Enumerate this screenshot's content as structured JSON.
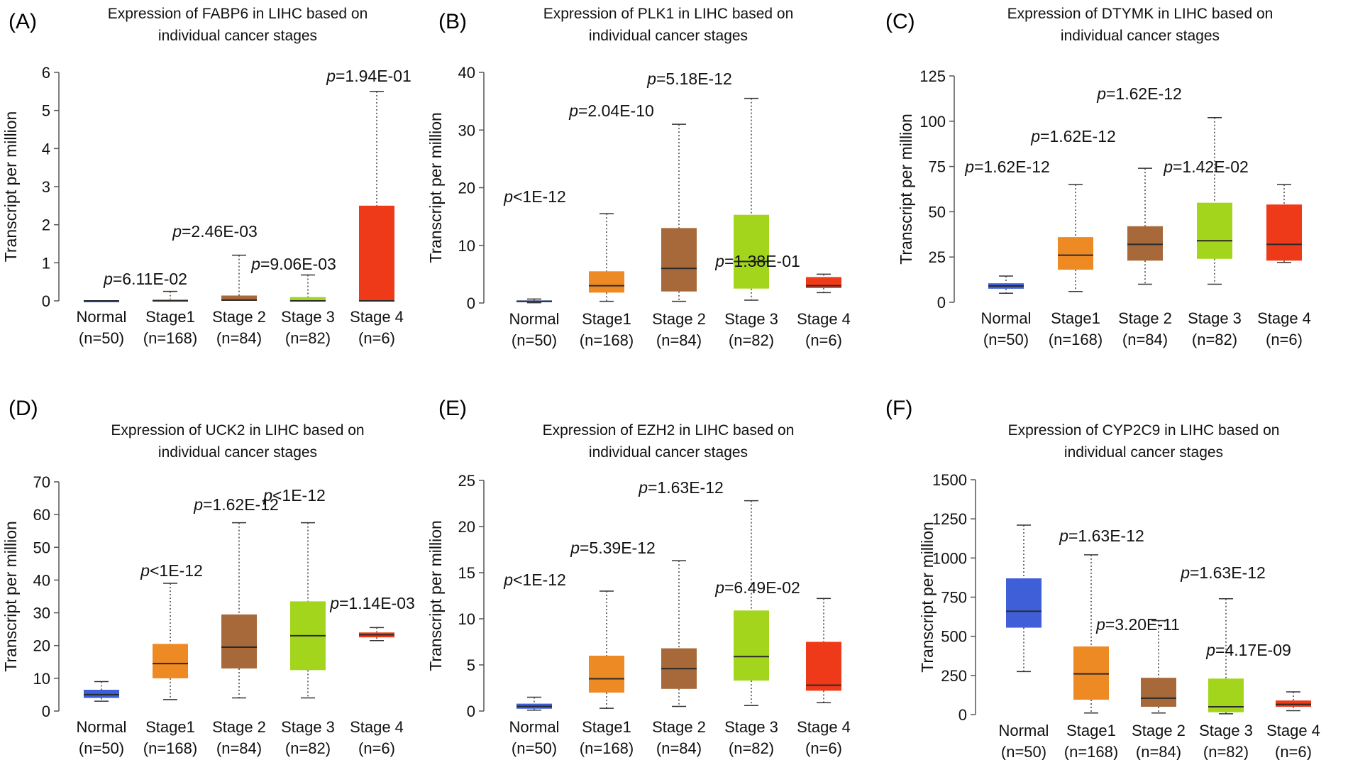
{
  "colors": {
    "Normal": "#3f5fd8",
    "Stage1": "#ee8a24",
    "Stage 2": "#a8693a",
    "Stage 3": "#a3d51d",
    "Stage 4": "#ef3a1a"
  },
  "chart_data": [
    {
      "panel": "(A)",
      "type": "boxplot",
      "title": [
        "Expression of FABP6 in LIHC based on",
        "individual cancer stages"
      ],
      "ylabel": "Transcript per million",
      "ylim": [
        0,
        6
      ],
      "yticks": [
        0,
        1,
        2,
        3,
        4,
        5,
        6
      ],
      "groups": [
        {
          "name": "Normal",
          "n": "(n=50)",
          "min": 0,
          "q1": 0,
          "median": 0,
          "q3": 0,
          "max": 0,
          "p_prefix": "",
          "p_value": ""
        },
        {
          "name": "Stage1",
          "n": "(n=168)",
          "min": 0,
          "q1": 0,
          "median": 0,
          "q3": 0.04,
          "max": 0.25,
          "p_prefix": "p",
          "p_value": "=6.11E-02"
        },
        {
          "name": "Stage 2",
          "n": "(n=84)",
          "min": 0,
          "q1": 0,
          "median": 0.02,
          "q3": 0.14,
          "max": 1.2,
          "p_prefix": "p",
          "p_value": "=2.46E-03"
        },
        {
          "name": "Stage 3",
          "n": "(n=82)",
          "min": 0,
          "q1": 0,
          "median": 0,
          "q3": 0.1,
          "max": 0.68,
          "p_prefix": "p",
          "p_value": "=9.06E-03"
        },
        {
          "name": "Stage 4",
          "n": "(n=6)",
          "min": 0,
          "q1": 0,
          "median": 0,
          "q3": 2.5,
          "max": 5.5,
          "p_prefix": "p",
          "p_value": "=1.94E-01"
        }
      ]
    },
    {
      "panel": "(B)",
      "type": "boxplot",
      "title": [
        "Expression of PLK1 in LIHC based on",
        "individual cancer stages"
      ],
      "ylabel": "Transcript per million",
      "ylim": [
        0,
        40
      ],
      "yticks": [
        0,
        10,
        20,
        30,
        40
      ],
      "groups": [
        {
          "name": "Normal",
          "n": "(n=50)",
          "min": 0.05,
          "q1": 0.15,
          "median": 0.3,
          "q3": 0.45,
          "max": 0.7,
          "p_prefix": "",
          "p_value": ""
        },
        {
          "name": "Stage1",
          "n": "(n=168)",
          "min": 0.3,
          "q1": 1.8,
          "median": 3,
          "q3": 5.5,
          "max": 15.5,
          "p_prefix": "p",
          "p_value": "<1E-12"
        },
        {
          "name": "Stage 2",
          "n": "(n=84)",
          "min": 0.3,
          "q1": 2,
          "median": 6,
          "q3": 13,
          "max": 31,
          "p_prefix": "p",
          "p_value": "=2.04E-10"
        },
        {
          "name": "Stage 3",
          "n": "(n=82)",
          "min": 0.5,
          "q1": 2.5,
          "median": 7.2,
          "q3": 15.3,
          "max": 35.5,
          "p_prefix": "p",
          "p_value": "=5.18E-12"
        },
        {
          "name": "Stage 4",
          "n": "(n=6)",
          "min": 1.8,
          "q1": 2.6,
          "median": 3,
          "q3": 4.5,
          "max": 5,
          "p_prefix": "p",
          "p_value": "=1.38E-01"
        }
      ]
    },
    {
      "panel": "(C)",
      "type": "boxplot",
      "title": [
        "Expression of DTYMK in LIHC based on",
        "individual cancer stages"
      ],
      "ylabel": "Transcript per million",
      "ylim": [
        0,
        125
      ],
      "yticks": [
        0,
        25,
        50,
        75,
        100,
        125
      ],
      "groups": [
        {
          "name": "Normal",
          "n": "(n=50)",
          "min": 5,
          "q1": 7.5,
          "median": 9,
          "q3": 10.5,
          "max": 14.5,
          "p_prefix": "",
          "p_value": ""
        },
        {
          "name": "Stage1",
          "n": "(n=168)",
          "min": 6,
          "q1": 18,
          "median": 26,
          "q3": 36,
          "max": 65,
          "p_prefix": "p",
          "p_value": "=1.62E-12"
        },
        {
          "name": "Stage 2",
          "n": "(n=84)",
          "min": 10,
          "q1": 23,
          "median": 32,
          "q3": 42,
          "max": 74,
          "p_prefix": "p",
          "p_value": "=1.62E-12"
        },
        {
          "name": "Stage 3",
          "n": "(n=82)",
          "min": 10,
          "q1": 24,
          "median": 34,
          "q3": 55,
          "max": 102,
          "p_prefix": "p",
          "p_value": "=1.62E-12"
        },
        {
          "name": "Stage 4",
          "n": "(n=6)",
          "min": 22,
          "q1": 23,
          "median": 32,
          "q3": 54,
          "max": 65,
          "p_prefix": "p",
          "p_value": "=1.42E-02"
        }
      ]
    },
    {
      "panel": "(D)",
      "type": "boxplot",
      "title": [
        "Expression of UCK2 in LIHC based on",
        "individual cancer stages"
      ],
      "ylabel": "Transcript per million",
      "ylim": [
        0,
        70
      ],
      "yticks": [
        0,
        10,
        20,
        30,
        40,
        50,
        60,
        70
      ],
      "groups": [
        {
          "name": "Normal",
          "n": "(n=50)",
          "min": 3,
          "q1": 4,
          "median": 5,
          "q3": 6.5,
          "max": 9,
          "p_prefix": "",
          "p_value": ""
        },
        {
          "name": "Stage1",
          "n": "(n=168)",
          "min": 3.5,
          "q1": 10,
          "median": 14.5,
          "q3": 20.5,
          "max": 39,
          "p_prefix": "p",
          "p_value": "<1E-12"
        },
        {
          "name": "Stage 2",
          "n": "(n=84)",
          "min": 4,
          "q1": 13,
          "median": 19.5,
          "q3": 29.5,
          "max": 57.5,
          "p_prefix": "p",
          "p_value": "=1.62E-12"
        },
        {
          "name": "Stage 3",
          "n": "(n=82)",
          "min": 4,
          "q1": 12.5,
          "median": 23,
          "q3": 33.5,
          "max": 57.5,
          "p_prefix": "p",
          "p_value": "<1E-12"
        },
        {
          "name": "Stage 4",
          "n": "(n=6)",
          "min": 21.5,
          "q1": 22.5,
          "median": 23.3,
          "q3": 24,
          "max": 25.5,
          "p_prefix": "p",
          "p_value": "=1.14E-03"
        }
      ]
    },
    {
      "panel": "(E)",
      "type": "boxplot",
      "title": [
        "Expression of EZH2 in LIHC based on",
        "individual cancer stages"
      ],
      "ylabel": "Transcript per million",
      "ylim": [
        0,
        25
      ],
      "yticks": [
        0,
        5,
        10,
        15,
        20,
        25
      ],
      "groups": [
        {
          "name": "Normal",
          "n": "(n=50)",
          "min": 0.1,
          "q1": 0.25,
          "median": 0.5,
          "q3": 0.8,
          "max": 1.5,
          "p_prefix": "",
          "p_value": ""
        },
        {
          "name": "Stage1",
          "n": "(n=168)",
          "min": 0.3,
          "q1": 2,
          "median": 3.5,
          "q3": 6,
          "max": 13,
          "p_prefix": "p",
          "p_value": "<1E-12"
        },
        {
          "name": "Stage 2",
          "n": "(n=84)",
          "min": 0.5,
          "q1": 2.4,
          "median": 4.6,
          "q3": 6.8,
          "max": 16.3,
          "p_prefix": "p",
          "p_value": "=5.39E-12"
        },
        {
          "name": "Stage 3",
          "n": "(n=82)",
          "min": 0.6,
          "q1": 3.3,
          "median": 5.9,
          "q3": 10.9,
          "max": 22.8,
          "p_prefix": "p",
          "p_value": "=1.63E-12"
        },
        {
          "name": "Stage 4",
          "n": "(n=6)",
          "min": 0.9,
          "q1": 2.2,
          "median": 2.8,
          "q3": 7.5,
          "max": 12.2,
          "p_prefix": "p",
          "p_value": "=6.49E-02"
        }
      ]
    },
    {
      "panel": "(F)",
      "type": "boxplot",
      "title": [
        "Expression of CYP2C9 in LIHC based on",
        "individual cancer stages"
      ],
      "ylabel": "Transcript per million",
      "ylim": [
        0,
        1500
      ],
      "yticks": [
        0,
        250,
        500,
        750,
        1000,
        1250,
        1500
      ],
      "groups": [
        {
          "name": "Normal",
          "n": "(n=50)",
          "min": 275,
          "q1": 555,
          "median": 660,
          "q3": 870,
          "max": 1210,
          "p_prefix": "",
          "p_value": ""
        },
        {
          "name": "Stage1",
          "n": "(n=168)",
          "min": 10,
          "q1": 95,
          "median": 260,
          "q3": 435,
          "max": 1020,
          "p_prefix": "p",
          "p_value": "=1.63E-12"
        },
        {
          "name": "Stage 2",
          "n": "(n=84)",
          "min": 10,
          "q1": 50,
          "median": 105,
          "q3": 235,
          "max": 600,
          "p_prefix": "p",
          "p_value": "=3.20E-11"
        },
        {
          "name": "Stage 3",
          "n": "(n=82)",
          "min": 5,
          "q1": 15,
          "median": 50,
          "q3": 230,
          "max": 740,
          "p_prefix": "p",
          "p_value": "=1.63E-12"
        },
        {
          "name": "Stage 4",
          "n": "(n=6)",
          "min": 25,
          "q1": 50,
          "median": 65,
          "q3": 90,
          "max": 145,
          "p_prefix": "p",
          "p_value": "=4.17E-09"
        }
      ]
    }
  ]
}
